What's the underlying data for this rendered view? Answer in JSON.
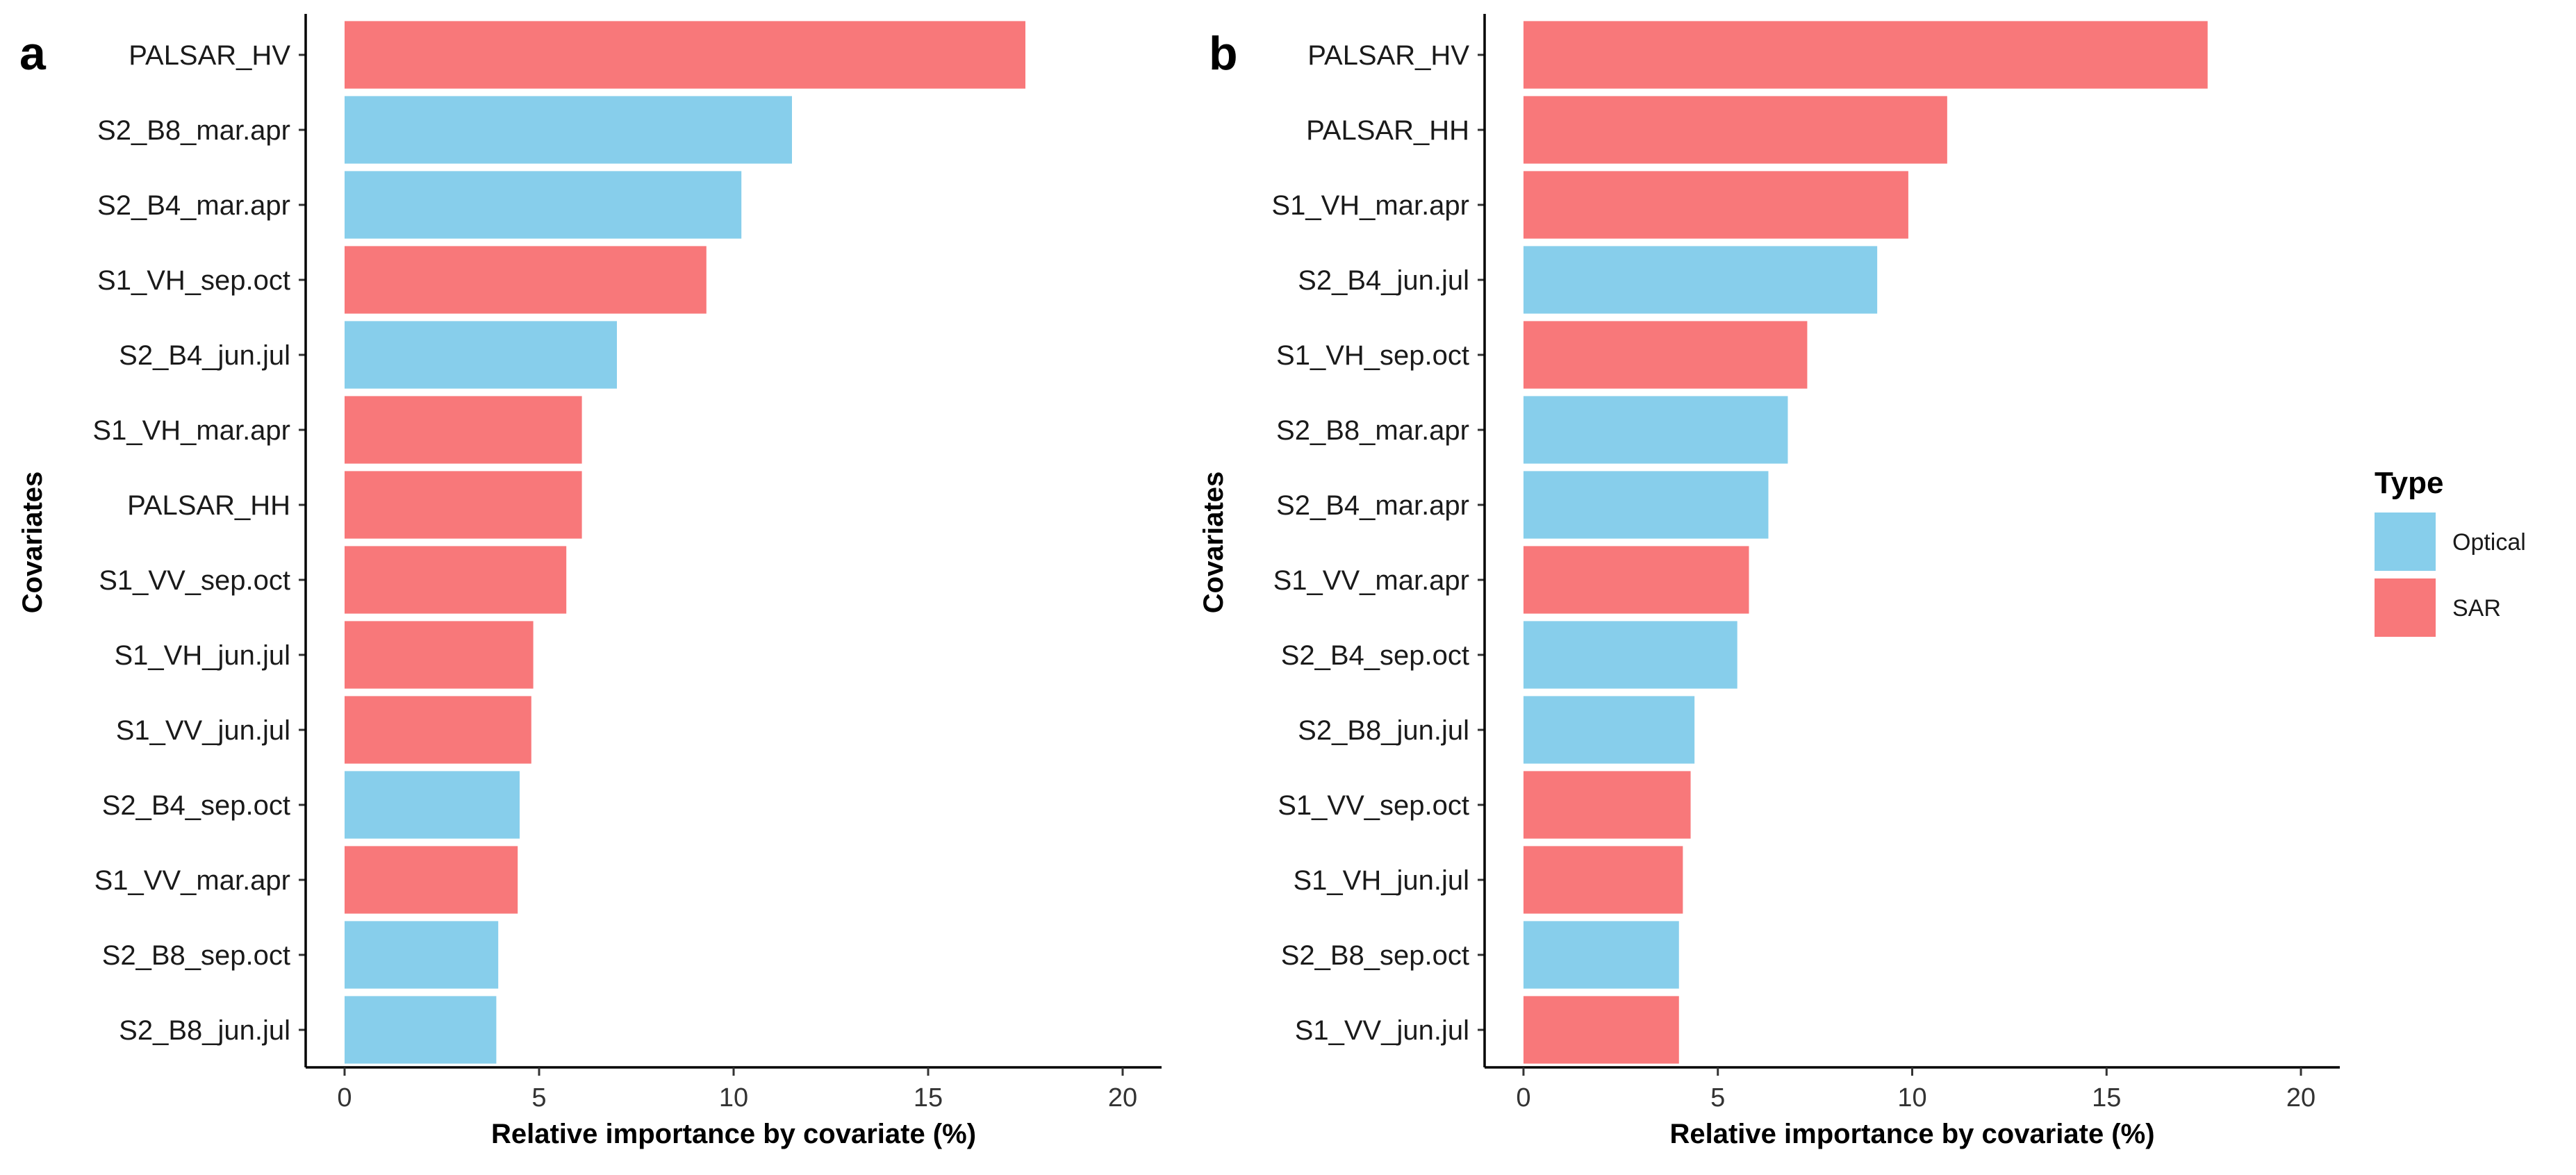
{
  "colors": {
    "Optical": "#87CEEB",
    "SAR": "#F8787A"
  },
  "legend": {
    "title": "Type",
    "items": [
      "Optical",
      "SAR"
    ]
  },
  "chart_data": [
    {
      "type": "bar",
      "orientation": "horizontal",
      "panel": "a",
      "xlabel": "Relative importance by covariate (%)",
      "ylabel": "Covariates",
      "xlim": [
        -1,
        21
      ],
      "xticks": [
        0,
        5,
        10,
        15,
        20
      ],
      "categories": [
        "PALSAR_HV",
        "S2_B8_mar.apr",
        "S2_B4_mar.apr",
        "S1_VH_sep.oct",
        "S2_B4_jun.jul",
        "S1_VH_mar.apr",
        "PALSAR_HH",
        "S1_VV_sep.oct",
        "S1_VH_jun.jul",
        "S1_VV_jun.jul",
        "S2_B4_sep.oct",
        "S1_VV_mar.apr",
        "S2_B8_sep.oct",
        "S2_B8_jun.jul"
      ],
      "values": [
        17.5,
        11.5,
        10.2,
        9.3,
        7.0,
        6.1,
        6.1,
        5.7,
        4.85,
        4.8,
        4.5,
        4.45,
        3.95,
        3.9
      ],
      "types": [
        "SAR",
        "Optical",
        "Optical",
        "SAR",
        "Optical",
        "SAR",
        "SAR",
        "SAR",
        "SAR",
        "SAR",
        "Optical",
        "SAR",
        "Optical",
        "Optical"
      ]
    },
    {
      "type": "bar",
      "orientation": "horizontal",
      "panel": "b",
      "xlabel": "Relative importance by covariate (%)",
      "ylabel": "Covariates",
      "xlim": [
        -1,
        21
      ],
      "xticks": [
        0,
        5,
        10,
        15,
        20
      ],
      "categories": [
        "PALSAR_HV",
        "PALSAR_HH",
        "S1_VH_mar.apr",
        "S2_B4_jun.jul",
        "S1_VH_sep.oct",
        "S2_B8_mar.apr",
        "S2_B4_mar.apr",
        "S1_VV_mar.apr",
        "S2_B4_sep.oct",
        "S2_B8_jun.jul",
        "S1_VV_sep.oct",
        "S1_VH_jun.jul",
        "S2_B8_sep.oct",
        "S1_VV_jun.jul"
      ],
      "values": [
        17.6,
        10.9,
        9.9,
        9.1,
        7.3,
        6.8,
        6.3,
        5.8,
        5.5,
        4.4,
        4.3,
        4.1,
        4.0,
        4.0
      ],
      "types": [
        "SAR",
        "SAR",
        "SAR",
        "Optical",
        "SAR",
        "Optical",
        "Optical",
        "SAR",
        "Optical",
        "Optical",
        "SAR",
        "SAR",
        "Optical",
        "SAR"
      ]
    }
  ]
}
